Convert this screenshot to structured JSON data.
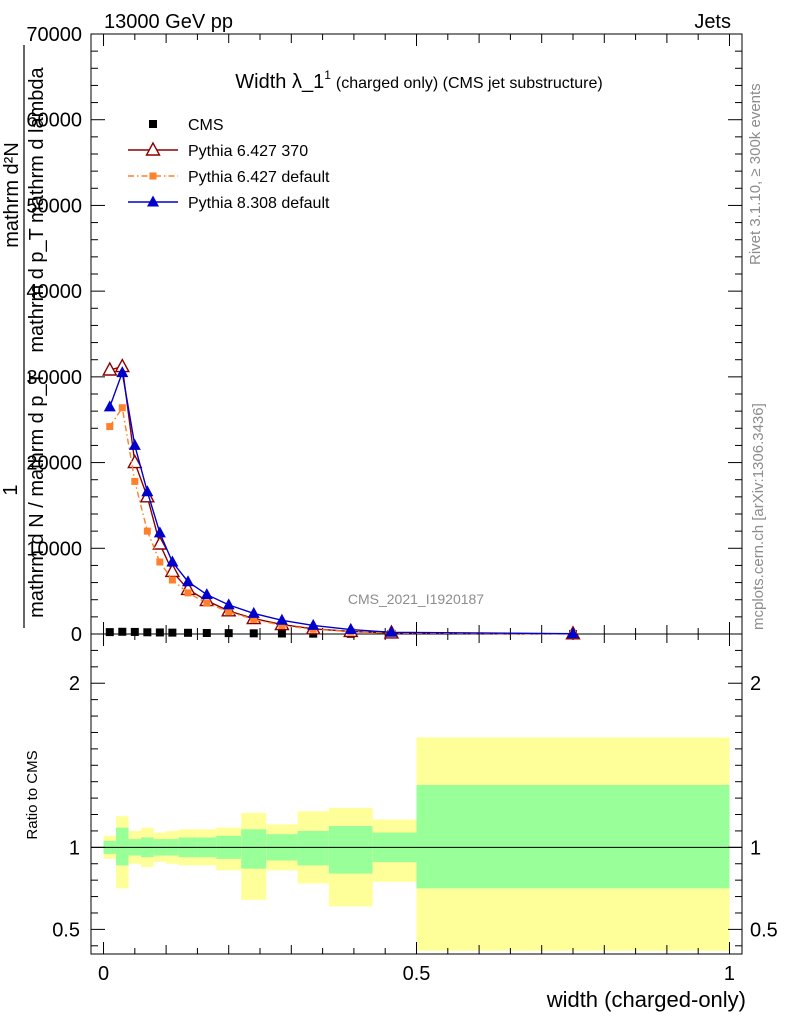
{
  "header": {
    "energy_label": "13000 GeV pp",
    "category_label": "Jets"
  },
  "side": {
    "rivet": "Rivet 3.1.10, ≥ 300k events",
    "mcplots": "mcplots.cern.ch [arXiv:1306.3436]"
  },
  "chart_data": {
    "type": "line",
    "title_main": "Width λ_1",
    "title_sup": "1",
    "title_sub": "(charged only) (CMS jet substructure)",
    "watermark": "CMS_2021_I1920187",
    "xlabel": "width (charged-only)",
    "ylabel_num": "1",
    "ylabel_main": "mathrm d N / mathrm d p_T",
    "ylabel_extra": "mathrm d p_T mathrm d lambda",
    "ylabel_top": "mathrm d²N",
    "ratio_ylabel": "Ratio to CMS",
    "xlim": [
      -0.02,
      1.02
    ],
    "ylim": [
      0,
      70000
    ],
    "ratio_ylim": [
      0.35,
      2.3
    ],
    "x_ticks": [
      {
        "value": 0,
        "label": "0"
      },
      {
        "value": 0.5,
        "label": "0.5"
      },
      {
        "value": 1,
        "label": "1"
      }
    ],
    "y_ticks": [
      {
        "value": 0,
        "label": "0"
      },
      {
        "value": 10000,
        "label": "10000"
      },
      {
        "value": 20000,
        "label": "20000"
      },
      {
        "value": 30000,
        "label": "30000"
      },
      {
        "value": 40000,
        "label": "40000"
      },
      {
        "value": 50000,
        "label": "50000"
      },
      {
        "value": 60000,
        "label": "60000"
      },
      {
        "value": 70000,
        "label": "70000"
      }
    ],
    "ratio_ticks": [
      {
        "value": 0.5,
        "label": "0.5"
      },
      {
        "value": 1,
        "label": "1"
      },
      {
        "value": 2,
        "label": "2"
      }
    ],
    "series": [
      {
        "name": "CMS",
        "color": "#000000",
        "marker": "square",
        "line": "none",
        "x": [
          0.01,
          0.03,
          0.05,
          0.07,
          0.09,
          0.11,
          0.135,
          0.165,
          0.2,
          0.24,
          0.285,
          0.335,
          0.395,
          0.46,
          0.75
        ],
        "values": [
          220,
          260,
          240,
          200,
          180,
          160,
          140,
          120,
          100,
          80,
          60,
          40,
          25,
          12,
          2
        ]
      },
      {
        "name": "Pythia 6.427 370",
        "color": "#8b0000",
        "marker": "triangle-open",
        "line": "solid",
        "x": [
          0.01,
          0.03,
          0.05,
          0.07,
          0.09,
          0.11,
          0.135,
          0.165,
          0.2,
          0.24,
          0.285,
          0.335,
          0.395,
          0.46,
          0.75
        ],
        "values": [
          30800,
          31200,
          20000,
          16000,
          10500,
          7300,
          5200,
          3900,
          2700,
          1800,
          1100,
          600,
          300,
          120,
          20
        ]
      },
      {
        "name": "Pythia 6.427 default",
        "color": "#ff7f2a",
        "marker": "square-small",
        "line": "dashdot",
        "x": [
          0.01,
          0.03,
          0.05,
          0.07,
          0.09,
          0.11,
          0.135,
          0.165,
          0.2,
          0.24,
          0.285,
          0.335,
          0.395,
          0.46,
          0.75
        ],
        "values": [
          24200,
          26400,
          17800,
          12000,
          8400,
          6300,
          4800,
          3600,
          2600,
          1700,
          1000,
          550,
          270,
          110,
          18
        ]
      },
      {
        "name": "Pythia 8.308 default",
        "color": "#0000cd",
        "marker": "triangle-filled",
        "line": "solid",
        "x": [
          0.01,
          0.03,
          0.05,
          0.07,
          0.09,
          0.11,
          0.135,
          0.165,
          0.2,
          0.24,
          0.285,
          0.335,
          0.395,
          0.46,
          0.75
        ],
        "values": [
          26500,
          30500,
          22000,
          16600,
          11800,
          8400,
          6100,
          4600,
          3400,
          2400,
          1600,
          1000,
          520,
          200,
          30
        ]
      }
    ],
    "ratio_bands": [
      {
        "x0": 0.0,
        "x1": 0.02,
        "in_lo": 0.96,
        "in_hi": 1.04,
        "out_lo": 0.93,
        "out_hi": 1.07
      },
      {
        "x0": 0.02,
        "x1": 0.04,
        "in_lo": 0.89,
        "in_hi": 1.12,
        "out_lo": 0.75,
        "out_hi": 1.19
      },
      {
        "x0": 0.04,
        "x1": 0.06,
        "in_lo": 0.95,
        "in_hi": 1.05,
        "out_lo": 0.9,
        "out_hi": 1.1
      },
      {
        "x0": 0.06,
        "x1": 0.08,
        "in_lo": 0.94,
        "in_hi": 1.06,
        "out_lo": 0.88,
        "out_hi": 1.12
      },
      {
        "x0": 0.08,
        "x1": 0.1,
        "in_lo": 0.95,
        "in_hi": 1.05,
        "out_lo": 0.91,
        "out_hi": 1.09
      },
      {
        "x0": 0.1,
        "x1": 0.12,
        "in_lo": 0.95,
        "in_hi": 1.05,
        "out_lo": 0.9,
        "out_hi": 1.1
      },
      {
        "x0": 0.12,
        "x1": 0.15,
        "in_lo": 0.94,
        "in_hi": 1.06,
        "out_lo": 0.89,
        "out_hi": 1.11
      },
      {
        "x0": 0.15,
        "x1": 0.18,
        "in_lo": 0.94,
        "in_hi": 1.06,
        "out_lo": 0.89,
        "out_hi": 1.11
      },
      {
        "x0": 0.18,
        "x1": 0.22,
        "in_lo": 0.93,
        "in_hi": 1.07,
        "out_lo": 0.86,
        "out_hi": 1.12
      },
      {
        "x0": 0.22,
        "x1": 0.26,
        "in_lo": 0.87,
        "in_hi": 1.11,
        "out_lo": 0.68,
        "out_hi": 1.21
      },
      {
        "x0": 0.26,
        "x1": 0.31,
        "in_lo": 0.92,
        "in_hi": 1.08,
        "out_lo": 0.86,
        "out_hi": 1.14
      },
      {
        "x0": 0.31,
        "x1": 0.36,
        "in_lo": 0.89,
        "in_hi": 1.1,
        "out_lo": 0.78,
        "out_hi": 1.22
      },
      {
        "x0": 0.36,
        "x1": 0.43,
        "in_lo": 0.84,
        "in_hi": 1.13,
        "out_lo": 0.64,
        "out_hi": 1.24
      },
      {
        "x0": 0.43,
        "x1": 0.5,
        "in_lo": 0.91,
        "in_hi": 1.09,
        "out_lo": 0.79,
        "out_hi": 1.17
      },
      {
        "x0": 0.5,
        "x1": 1.0,
        "in_lo": 0.75,
        "in_hi": 1.38,
        "out_lo": 0.37,
        "out_hi": 1.67
      }
    ],
    "ratio_colors": {
      "inner": "#99ff99",
      "outer": "#ffff99",
      "line": "#000000"
    }
  }
}
